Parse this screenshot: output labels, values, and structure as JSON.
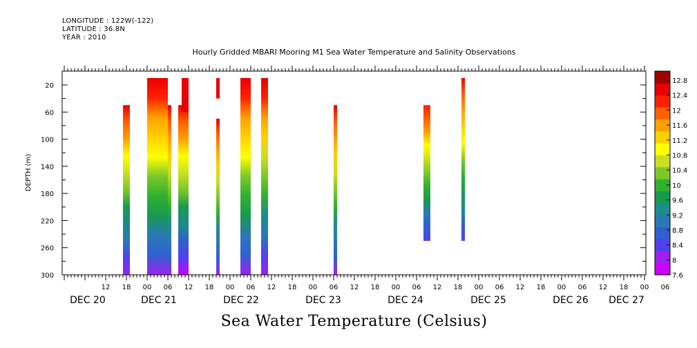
{
  "header": {
    "longitude": "LONGITUDE : 122W(-122)",
    "latitude": "LATITUDE : 36.8N",
    "year": "YEAR : 2010",
    "title": "Hourly Gridded MBARI Mooring M1 Sea Water Temperature and Salinity Observations"
  },
  "footer": {
    "variable": "Sea Water Temperature (Celsius)"
  },
  "chart_data": {
    "type": "heatmap",
    "title": "Hourly Gridded MBARI Mooring M1 Sea Water Temperature and Salinity Observations",
    "xlabel": "",
    "ylabel": "DEPTH (m)",
    "x_hours_labels": [
      "12",
      "18",
      "00",
      "06",
      "12",
      "18",
      "00",
      "06",
      "12",
      "18",
      "00",
      "06",
      "12",
      "18",
      "00",
      "06",
      "12",
      "18",
      "00",
      "06",
      "12",
      "18",
      "00",
      "06",
      "12",
      "18",
      "00",
      "06"
    ],
    "x_day_labels": [
      "DEC 20",
      "DEC 21",
      "DEC 22",
      "DEC 23",
      "DEC 24",
      "DEC 25",
      "DEC 26",
      "DEC 27"
    ],
    "y_ticks": [
      20,
      60,
      100,
      140,
      180,
      220,
      260,
      300
    ],
    "ylim": [
      300,
      10
    ],
    "colorbar": {
      "label": "Sea Water Temperature (Celsius)",
      "ticks": [
        "12.8",
        "12.4",
        "12",
        "11.6",
        "11.2",
        "10.8",
        "10.4",
        "10",
        "9.6",
        "9.2",
        "8.8",
        "8.4",
        "8",
        "7.6"
      ],
      "range": [
        7.6,
        13.0
      ]
    },
    "columns": [
      {
        "time": "DEC 20 17:00-19:00",
        "top": 60,
        "bottom": 300,
        "t_top": 12.4,
        "t_bottom": 8.0
      },
      {
        "time": "DEC 21 00:00-06:00",
        "top": 20,
        "bottom": 300,
        "t_top": 12.6,
        "t_bottom": 8.2
      },
      {
        "time": "DEC 21 06:00-07:00",
        "top": 60,
        "bottom": 300,
        "t_top": 12.4,
        "t_bottom": 8.2
      },
      {
        "time": "DEC 21 09:00-12:00",
        "top": 60,
        "bottom": 300,
        "t_top": 12.4,
        "t_bottom": 7.9
      },
      {
        "time": "DEC 21 10:00-12:00",
        "top": 20,
        "bottom": 60,
        "t_top": 12.6,
        "t_bottom": 12.4
      },
      {
        "time": "DEC 21 20:00",
        "top": 20,
        "bottom": 40,
        "t_top": 12.6,
        "t_bottom": 12.5
      },
      {
        "time": "DEC 21 20:00",
        "top": 80,
        "bottom": 300,
        "t_top": 12.4,
        "t_bottom": 8.2
      },
      {
        "time": "DEC 22 03:00-06:00",
        "top": 20,
        "bottom": 300,
        "t_top": 12.6,
        "t_bottom": 8.2
      },
      {
        "time": "DEC 22 09:00-11:00",
        "top": 20,
        "bottom": 300,
        "t_top": 12.6,
        "t_bottom": 8.0
      },
      {
        "time": "DEC 23 06:00-07:00",
        "top": 60,
        "bottom": 300,
        "t_top": 12.4,
        "t_bottom": 8.2
      },
      {
        "time": "DEC 24 08:00-10:00",
        "top": 60,
        "bottom": 250,
        "t_top": 12.2,
        "t_bottom": 8.4
      },
      {
        "time": "DEC 24 19:00",
        "top": 20,
        "bottom": 250,
        "t_top": 12.4,
        "t_bottom": 8.4
      }
    ]
  },
  "colors": {
    "palette": [
      "#cc00ff",
      "#a020f0",
      "#5040f0",
      "#3060d0",
      "#2a78b8",
      "#1c8c8c",
      "#179a50",
      "#30b030",
      "#7cc828",
      "#c8e020",
      "#ffff00",
      "#ffd000",
      "#ffa000",
      "#ff6000",
      "#ff2000",
      "#e80000",
      "#a00000"
    ]
  }
}
